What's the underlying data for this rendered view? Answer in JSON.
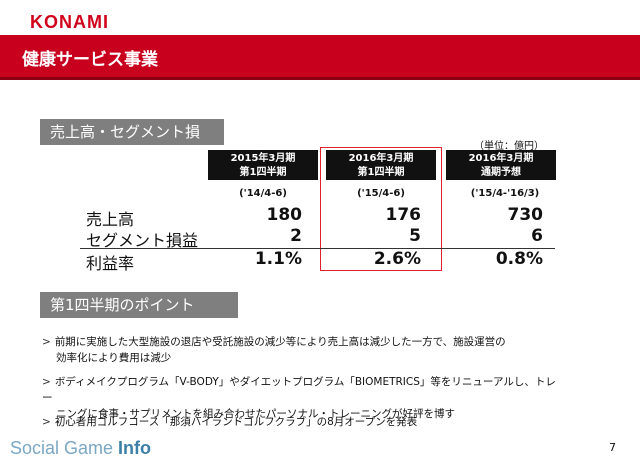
{
  "header": {
    "logo": "KONAMI",
    "title": "健康サービス事業"
  },
  "section1": {
    "label": "売上高・セグメント損益"
  },
  "table": {
    "unit": "（単位：億円）",
    "columns": [
      {
        "head1": "2015年3月期",
        "head2": "第1四半期",
        "period": "('14/4-6)"
      },
      {
        "head1": "2016年3月期",
        "head2": "第1四半期",
        "period": "('15/4-6)"
      },
      {
        "head1": "2016年3月期",
        "head2": "通期予想",
        "period": "('15/4-'16/3)"
      }
    ],
    "rows": [
      {
        "label": "売上高",
        "values": [
          "180",
          "176",
          "730"
        ]
      },
      {
        "label": "セグメント損益",
        "values": [
          "2",
          "5",
          "6"
        ]
      },
      {
        "label": "利益率",
        "values": [
          "1.1%",
          "2.6%",
          "0.8%"
        ]
      }
    ]
  },
  "section2": {
    "label": "第1四半期のポイント"
  },
  "bullets": [
    {
      "line1": "前期に実施した大型施設の退店や受託施設の減少等により売上高は減少した一方で、施設運営の",
      "line2": "効率化により費用は減少"
    },
    {
      "line1": "ボディメイクプログラム「V-BODY」やダイエットプログラム「BIOMETRICS」等をリニューアルし、トレー",
      "line2": "ニングに食事・サプリメントを組み合わせたパーソナル・トレーニングが好評を博す"
    },
    {
      "line1": "初心者用ゴルフコース「那須ハイランドゴルフクラブ」の8月オープンを発表",
      "line2": ""
    }
  ],
  "footer": {
    "text1": "Social Game ",
    "text2": "Info",
    "page": "7"
  },
  "colors": {
    "brand": "#c8001e",
    "highlight": "#e0202a",
    "label_bg": "#7f7f7f"
  }
}
